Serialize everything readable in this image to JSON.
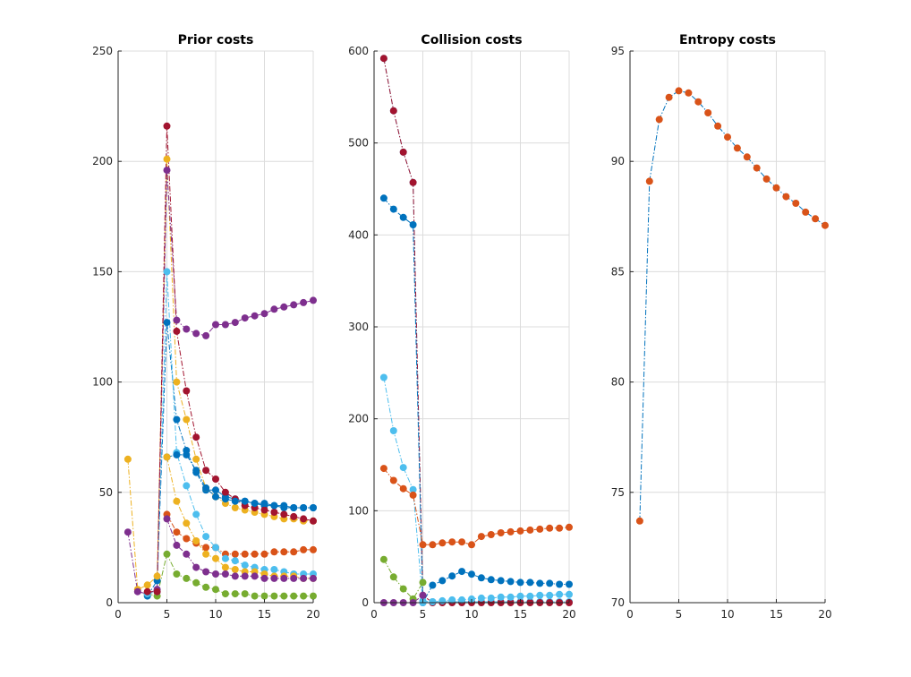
{
  "colors": [
    "#0072BD",
    "#D95319",
    "#EDB120",
    "#7E2F8E",
    "#77AC30",
    "#4DBEEE",
    "#A2142F"
  ],
  "chart_data": [
    {
      "type": "line",
      "title": "Prior costs",
      "xlim": [
        0,
        20
      ],
      "ylim": [
        0,
        250
      ],
      "xticks": [
        0,
        5,
        10,
        15,
        20
      ],
      "yticks": [
        0,
        50,
        100,
        150,
        200,
        250
      ],
      "grid": true,
      "x": [
        1,
        2,
        3,
        4,
        5,
        6,
        7,
        8,
        9,
        10,
        11,
        12,
        13,
        14,
        15,
        16,
        17,
        18,
        19,
        20
      ],
      "series": [
        {
          "color": "#0072BD",
          "values": [
            null,
            null,
            3,
            10,
            127,
            83,
            69,
            59,
            51,
            51,
            48,
            47,
            46,
            45,
            44,
            44,
            43,
            43,
            43,
            43
          ]
        },
        {
          "color": "#D95319",
          "values": [
            null,
            null,
            null,
            null,
            40,
            32,
            29,
            27,
            25,
            25,
            22,
            22,
            22,
            22,
            22,
            23,
            23,
            23,
            24,
            24
          ]
        },
        {
          "color": "#EDB120",
          "values": [
            65,
            6,
            8,
            12,
            201,
            100,
            83,
            65,
            52,
            48,
            45,
            43,
            42,
            41,
            40,
            39,
            38,
            38,
            37,
            37
          ]
        },
        {
          "color": "#7E2F8E",
          "values": [
            32,
            5,
            4,
            6,
            196,
            128,
            124,
            122,
            121,
            126,
            126,
            127,
            129,
            130,
            131,
            133,
            134,
            135,
            136,
            137
          ]
        },
        {
          "color": "#77AC30",
          "values": [
            null,
            null,
            4,
            3,
            22,
            13,
            11,
            9,
            7,
            6,
            4,
            4,
            4,
            3,
            3,
            3,
            3,
            3,
            3,
            3
          ]
        },
        {
          "color": "#4DBEEE",
          "values": [
            null,
            null,
            4,
            5,
            150,
            68,
            53,
            40,
            30,
            25,
            20,
            19,
            17,
            16,
            15,
            15,
            14,
            13,
            13,
            13
          ]
        },
        {
          "color": "#A2142F",
          "values": [
            null,
            null,
            5,
            5,
            216,
            123,
            96,
            75,
            60,
            56,
            50,
            47,
            44,
            43,
            42,
            41,
            40,
            39,
            38,
            37
          ]
        },
        {
          "color": "#0072BD",
          "values": [
            null,
            null,
            null,
            null,
            66,
            67,
            67,
            60,
            52,
            48,
            47,
            46,
            46,
            45,
            45,
            44,
            44,
            43,
            43,
            43
          ]
        },
        {
          "color": "#EDB120",
          "values": [
            null,
            null,
            null,
            null,
            66,
            46,
            36,
            28,
            22,
            20,
            16,
            15,
            14,
            14,
            13,
            12,
            12,
            12,
            11,
            11
          ]
        },
        {
          "color": "#7E2F8E",
          "values": [
            null,
            null,
            null,
            null,
            38,
            26,
            22,
            16,
            14,
            13,
            13,
            12,
            12,
            12,
            11,
            11,
            11,
            11,
            11,
            11
          ]
        }
      ]
    },
    {
      "type": "line",
      "title": "Collision costs",
      "xlim": [
        0,
        20
      ],
      "ylim": [
        0,
        600
      ],
      "xticks": [
        0,
        5,
        10,
        15,
        20
      ],
      "yticks": [
        0,
        100,
        200,
        300,
        400,
        500,
        600
      ],
      "grid": true,
      "x": [
        1,
        2,
        3,
        4,
        5,
        6,
        7,
        8,
        9,
        10,
        11,
        12,
        13,
        14,
        15,
        16,
        17,
        18,
        19,
        20
      ],
      "series": [
        {
          "color": "#4DBEEE",
          "values": [
            592,
            535,
            490,
            457,
            2,
            1,
            1,
            1,
            1,
            1,
            1,
            1,
            1,
            1,
            1,
            1,
            1,
            1,
            1,
            1
          ]
        },
        {
          "color": "#A2142F",
          "values": [
            592,
            535,
            490,
            457,
            8,
            0,
            0,
            0,
            0,
            0,
            0,
            0,
            0,
            0,
            0,
            0,
            0,
            0,
            0,
            0
          ]
        },
        {
          "color": "#0072BD",
          "values": [
            440,
            428,
            419,
            411,
            0,
            19,
            24,
            29,
            34,
            31,
            27,
            25,
            24,
            23,
            22,
            22,
            21,
            21,
            20,
            20
          ]
        },
        {
          "color": "#4DBEEE",
          "values": [
            245,
            187,
            147,
            123,
            0,
            1,
            2,
            3,
            3,
            4,
            5,
            5,
            6,
            6,
            7,
            7,
            8,
            8,
            9,
            9
          ]
        },
        {
          "color": "#D95319",
          "values": [
            146,
            133,
            124,
            117,
            63,
            63,
            65,
            66,
            66,
            63,
            72,
            74,
            76,
            77,
            78,
            79,
            80,
            81,
            81,
            82
          ]
        },
        {
          "color": "#77AC30",
          "values": [
            47,
            28,
            15,
            4,
            22,
            null,
            null,
            null,
            null,
            null,
            null,
            null,
            null,
            null,
            null,
            null,
            null,
            null,
            null,
            null
          ]
        },
        {
          "color": "#7E2F8E",
          "values": [
            0,
            0,
            0,
            0,
            8,
            null,
            null,
            null,
            null,
            null,
            null,
            null,
            null,
            null,
            null,
            null,
            null,
            null,
            null,
            null
          ]
        }
      ]
    },
    {
      "type": "line",
      "title": "Entropy costs",
      "xlim": [
        0,
        20
      ],
      "ylim": [
        70,
        95
      ],
      "xticks": [
        0,
        5,
        10,
        15,
        20
      ],
      "yticks": [
        70,
        75,
        80,
        85,
        90,
        95
      ],
      "grid": true,
      "x": [
        1,
        2,
        3,
        4,
        5,
        6,
        7,
        8,
        9,
        10,
        11,
        12,
        13,
        14,
        15,
        16,
        17,
        18,
        19,
        20
      ],
      "series": [
        {
          "color": "#D95319",
          "line_color": "#0072BD",
          "values": [
            73.7,
            89.1,
            91.9,
            92.9,
            93.2,
            93.1,
            92.7,
            92.2,
            91.6,
            91.1,
            90.6,
            90.2,
            89.7,
            89.2,
            88.8,
            88.4,
            88.1,
            87.7,
            87.4,
            87.1
          ]
        }
      ]
    }
  ]
}
